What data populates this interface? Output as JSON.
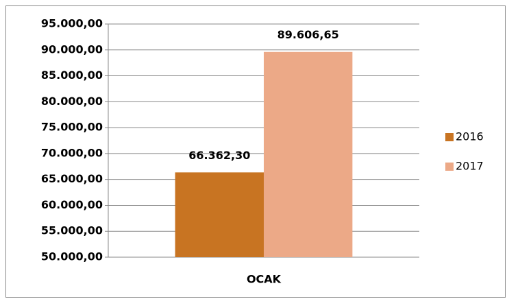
{
  "chart_data": {
    "type": "bar",
    "categories": [
      "OCAK"
    ],
    "series": [
      {
        "name": "2016",
        "color": "#c87422",
        "values": [
          66362.3
        ],
        "value_labels": [
          "66.362,30"
        ]
      },
      {
        "name": "2017",
        "color": "#eca987",
        "values": [
          89606.65
        ],
        "value_labels": [
          "89.606,65"
        ]
      }
    ],
    "ylim": [
      50000,
      95000
    ],
    "yticks": [
      {
        "value": 50000,
        "label": "50.000,00"
      },
      {
        "value": 55000,
        "label": "55.000,00"
      },
      {
        "value": 60000,
        "label": "60.000,00"
      },
      {
        "value": 65000,
        "label": "65.000,00"
      },
      {
        "value": 70000,
        "label": "70.000,00"
      },
      {
        "value": 75000,
        "label": "75.000,00"
      },
      {
        "value": 80000,
        "label": "80.000,00"
      },
      {
        "value": 85000,
        "label": "85.000,00"
      },
      {
        "value": 90000,
        "label": "90.000,00"
      },
      {
        "value": 95000,
        "label": "95.000,00"
      }
    ],
    "grid": true,
    "legend": "right"
  }
}
